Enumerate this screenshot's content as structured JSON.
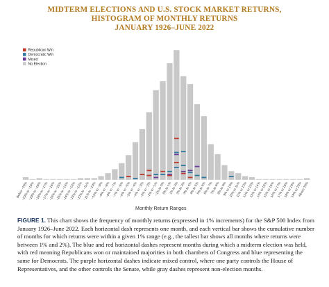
{
  "chart_data": {
    "type": "bar",
    "title_lines": [
      "MIDTERM ELECTIONS AND U.S. STOCK MARKET RETURNS,",
      "HISTOGRAM OF MONTHLY RETURNS",
      "JANUARY 1926–JUNE 2022"
    ],
    "xlabel": "Monthly Return Ranges",
    "ylabel": "",
    "legend_position": "top-left",
    "legend": [
      {
        "name": "Republican Win",
        "color": "#c0392b"
      },
      {
        "name": "Democratic Win",
        "color": "#2e7a9e"
      },
      {
        "name": "Mixed",
        "color": "#6a3d9a"
      },
      {
        "name": "No Election",
        "color": "#c8c8c8"
      }
    ],
    "categories": [
      "Below −20%",
      "−20% to −19%",
      "−19% to −18%",
      "−18% to −17%",
      "−17% to −16%",
      "−16% to −15%",
      "−15% to −14%",
      "−14% to −13%",
      "−13% to −12%",
      "−12% to −11%",
      "−11% to −10%",
      "−10% to −9%",
      "−9% to −8%",
      "−8% to −7%",
      "−7% to −6%",
      "−6% to −5%",
      "−5% to −4%",
      "−4% to −3%",
      "−3% to −2%",
      "−2% to −1%",
      "−1% to 0%",
      "0% to 1%",
      "1% to 2%",
      "2% to 3%",
      "3% to 4%",
      "4% to 5%",
      "5% to 6%",
      "6% to 7%",
      "7% to 8%",
      "8% to 9%",
      "9% to 10%",
      "10% to 11%",
      "11% to 12%",
      "12% to 13%",
      "13% to 14%",
      "14% to 15%",
      "15% to 16%",
      "16% to 17%",
      "17% to 18%",
      "18% to 19%",
      "19% to 20%",
      "Above 20%"
    ],
    "values": [
      3,
      1,
      2,
      1,
      1,
      1,
      1,
      1,
      2,
      2,
      2,
      4,
      7,
      11,
      17,
      25,
      38,
      51,
      68,
      90,
      99,
      117,
      130,
      104,
      96,
      76,
      64,
      36,
      26,
      15,
      9,
      7,
      4,
      3,
      1,
      1,
      1,
      1,
      1,
      1,
      1,
      2
    ],
    "series": [
      {
        "name": "Republican Win",
        "color": "#c0392b",
        "marks": [
          [
            15,
            4
          ],
          [
            17,
            6
          ],
          [
            18,
            5
          ],
          [
            18,
            10
          ],
          [
            20,
            9
          ],
          [
            21,
            5
          ],
          [
            22,
            18
          ],
          [
            22,
            42
          ],
          [
            23,
            7
          ],
          [
            24,
            3
          ]
        ]
      },
      {
        "name": "Democratic Win",
        "color": "#2e7a9e",
        "marks": [
          [
            14,
            3
          ],
          [
            16,
            2
          ],
          [
            19,
            6
          ],
          [
            20,
            6
          ],
          [
            21,
            9
          ],
          [
            22,
            13
          ],
          [
            22,
            28
          ],
          [
            23,
            15
          ],
          [
            23,
            29
          ],
          [
            24,
            8
          ],
          [
            25,
            5
          ],
          [
            26,
            3
          ],
          [
            30,
            4
          ]
        ]
      },
      {
        "name": "Mixed",
        "color": "#6a3d9a",
        "marks": [
          [
            19,
            3
          ],
          [
            21,
            6
          ],
          [
            22,
            26
          ],
          [
            23,
            9
          ],
          [
            24,
            10
          ],
          [
            25,
            14
          ]
        ]
      }
    ]
  },
  "xlabel": "Monthly Return Ranges",
  "caption": {
    "label": "FIGURE 1.",
    "text": " This chart shows the frequency of monthly returns (expressed in 1% increments) for the S&P 500 Index from January 1926–June 2022. Each horizontal dash represents one month, and each vertical bar shows the cumulative number of months for which returns were within a given 1% range (e.g., the tallest bar shows all months where returns were between 1% and 2%). The blue and red horizontal dashes represent months during which a midterm election was held, with red meaning Republicans won or maintained majorities in both chambers of Congress and blue representing the same for Democrats. The purple horizontal dashes indicate mixed control, where one party controls the House of Representatives, and the other controls the Senate, while gray dashes represent non-election months."
  }
}
